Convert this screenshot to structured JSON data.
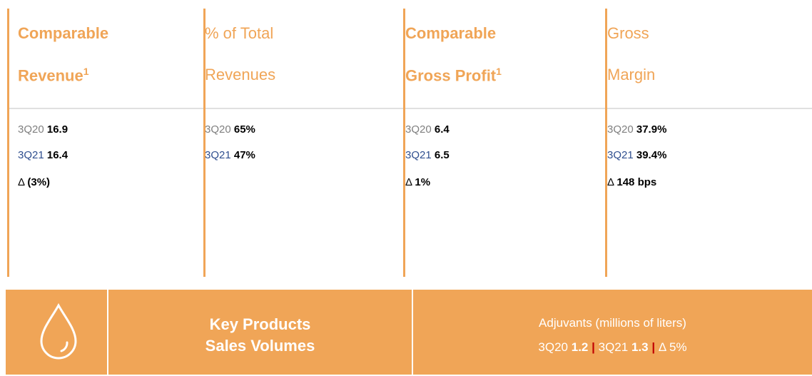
{
  "columns": [
    {
      "title": [
        "Comparable",
        "Revenue"
      ],
      "superscript": "1",
      "rows": [
        {
          "label": "3Q20",
          "value": "16.9"
        },
        {
          "label": "3Q21",
          "value": "16.4"
        },
        {
          "label": "Δ",
          "value": "(3%)"
        }
      ]
    },
    {
      "title": [
        "% of Total",
        "Revenues"
      ],
      "rows": [
        {
          "label": "3Q20",
          "value": "65%"
        },
        {
          "label": "3Q21",
          "value": "47%"
        }
      ]
    },
    {
      "title": [
        "Comparable",
        "Gross Profit"
      ],
      "superscript": "1",
      "rows": [
        {
          "label": "3Q20",
          "value": "6.4"
        },
        {
          "label": "3Q21",
          "value": "6.5"
        },
        {
          "label": "Δ",
          "value": "1%"
        }
      ]
    },
    {
      "title": [
        "Gross",
        "Margin"
      ],
      "rows": [
        {
          "label": "3Q20",
          "value": "37.9%"
        },
        {
          "label": "3Q21",
          "value": "39.4%"
        },
        {
          "label": "Δ",
          "value": "148 bps"
        }
      ]
    }
  ],
  "banner": {
    "title": [
      "Key Products",
      "Sales Volumes"
    ],
    "subtitle": "Adjuvants (millions of liters)",
    "separator": "|",
    "items": [
      {
        "label": "3Q20",
        "value": "1.2"
      },
      {
        "label": "3Q21",
        "value": "1.3"
      },
      {
        "label": "Δ",
        "value": "5%"
      }
    ]
  }
}
